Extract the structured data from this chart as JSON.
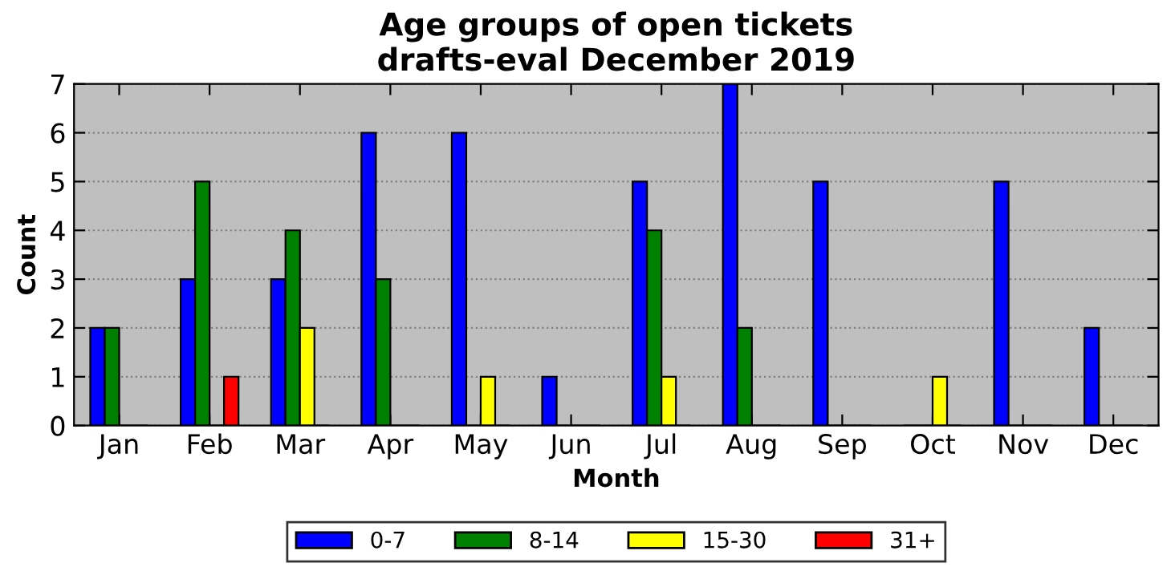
{
  "chart_data": {
    "type": "bar",
    "title": "Age groups of open tickets\ndrafts-eval December 2019",
    "xlabel": "Month",
    "ylabel": "Count",
    "categories": [
      "Jan",
      "Feb",
      "Mar",
      "Apr",
      "May",
      "Jun",
      "Jul",
      "Aug",
      "Sep",
      "Oct",
      "Nov",
      "Dec"
    ],
    "series": [
      {
        "name": "0-7",
        "color": "#0000ff",
        "values": [
          2,
          3,
          3,
          6,
          6,
          1,
          5,
          7,
          5,
          0,
          5,
          2
        ]
      },
      {
        "name": "8-14",
        "color": "#008000",
        "values": [
          2,
          5,
          4,
          3,
          0,
          0,
          4,
          2,
          0,
          0,
          0,
          0
        ]
      },
      {
        "name": "15-30",
        "color": "#ffff00",
        "values": [
          0,
          0,
          2,
          0,
          1,
          0,
          1,
          0,
          0,
          1,
          0,
          0
        ]
      },
      {
        "name": "31+",
        "color": "#ff0000",
        "values": [
          0,
          1,
          0,
          0,
          0,
          0,
          0,
          0,
          0,
          0,
          0,
          0
        ]
      }
    ],
    "ylim": [
      0,
      7
    ],
    "yticks": [
      0,
      1,
      2,
      3,
      4,
      5,
      6,
      7
    ],
    "grid": "y",
    "legend": "bottom"
  }
}
